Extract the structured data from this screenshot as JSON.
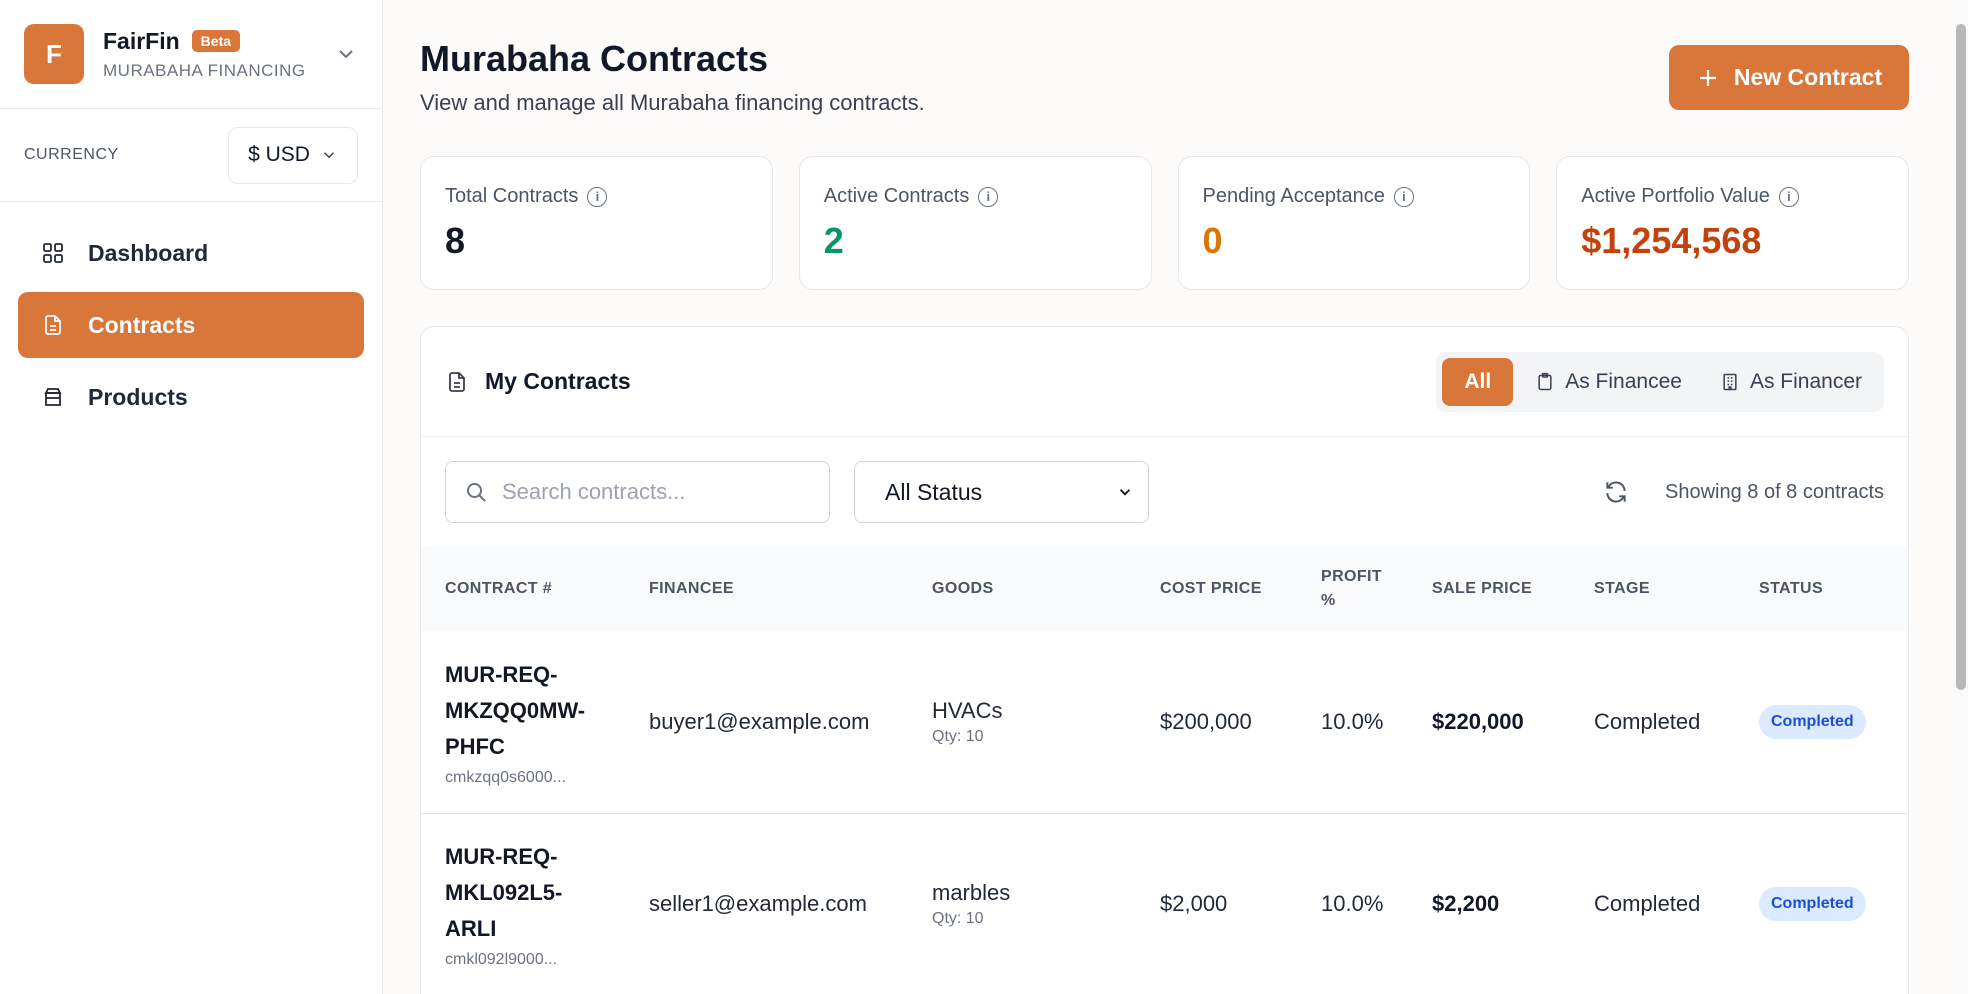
{
  "brand": {
    "initial": "F",
    "name": "FairFin",
    "badge": "Beta",
    "subtitle": "MURABAHA FINANCING"
  },
  "currency": {
    "label": "CURRENCY",
    "value": "$ USD"
  },
  "nav": [
    {
      "label": "Dashboard",
      "icon": "grid-icon"
    },
    {
      "label": "Contracts",
      "icon": "document-icon",
      "active": true
    },
    {
      "label": "Products",
      "icon": "box-icon"
    }
  ],
  "header": {
    "title": "Murabaha Contracts",
    "subtitle": "View and manage all Murabaha financing contracts.",
    "new_button": "New Contract"
  },
  "stats": [
    {
      "label": "Total Contracts",
      "value": "8",
      "color": "#111827"
    },
    {
      "label": "Active Contracts",
      "value": "2",
      "color": "#059669"
    },
    {
      "label": "Pending Acceptance",
      "value": "0",
      "color": "#d97706"
    },
    {
      "label": "Active Portfolio Value",
      "value": "$1,254,568",
      "color": "#c2410c"
    }
  ],
  "card": {
    "title": "My Contracts",
    "filters": {
      "all": "All",
      "financee": "As Financee",
      "financer": "As Financer"
    },
    "search_placeholder": "Search contracts...",
    "status_filter": "All Status",
    "showing": "Showing 8 of 8 contracts"
  },
  "table": {
    "headers": {
      "contract": "CONTRACT #",
      "financee": "FINANCEE",
      "goods": "GOODS",
      "cost": "COST PRICE",
      "profit_line1": "PROFIT",
      "profit_line2": "%",
      "sale": "SALE PRICE",
      "stage": "STAGE",
      "status": "STATUS"
    },
    "rows": [
      {
        "number_lines": [
          "MUR-REQ-",
          "MKZQQ0MW-",
          "PHFC"
        ],
        "id": "cmkzqq0s6000...",
        "financee": "buyer1@example.com",
        "goods": "HVACs",
        "qty": "Qty: 10",
        "cost": "$200,000",
        "profit": "10.0%",
        "sale": "$220,000",
        "stage": "Completed",
        "status": "Completed"
      },
      {
        "number_lines": [
          "MUR-REQ-",
          "MKL092L5-",
          "ARLI"
        ],
        "id": "cmkl092l9000...",
        "financee": "seller1@example.com",
        "goods": "marbles",
        "qty": "Qty: 10",
        "cost": "$2,000",
        "profit": "10.0%",
        "sale": "$2,200",
        "stage": "Completed",
        "status": "Completed"
      }
    ]
  }
}
